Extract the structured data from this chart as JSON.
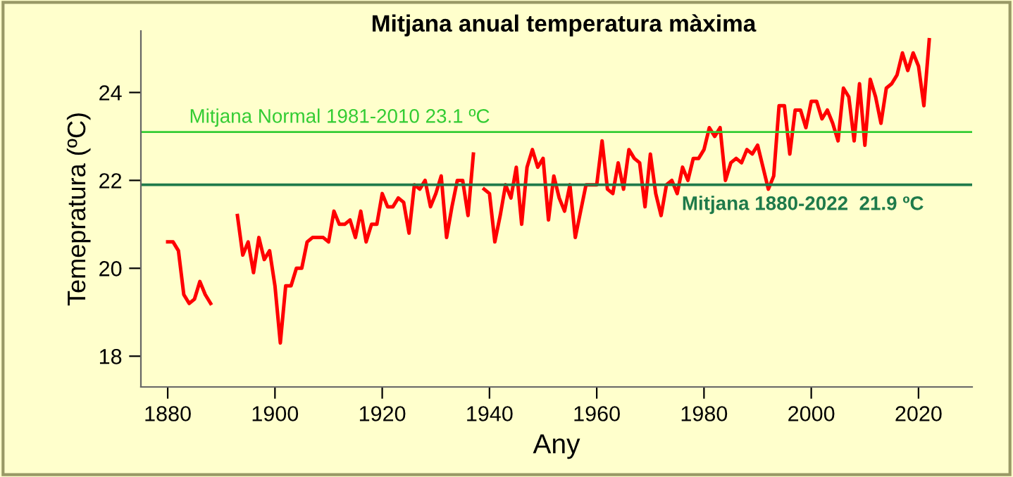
{
  "chart_data": {
    "type": "line",
    "title": "Mitjana anual temperatura màxima",
    "xlabel": "Any",
    "ylabel": "Temepratura (ºC)",
    "x": [
      1880,
      1881,
      1882,
      1883,
      1884,
      1885,
      1886,
      1887,
      1888,
      1889,
      1890,
      1891,
      1892,
      1893,
      1894,
      1895,
      1896,
      1897,
      1898,
      1899,
      1900,
      1901,
      1902,
      1903,
      1904,
      1905,
      1906,
      1907,
      1908,
      1909,
      1910,
      1911,
      1912,
      1913,
      1914,
      1915,
      1916,
      1917,
      1918,
      1919,
      1920,
      1921,
      1922,
      1923,
      1924,
      1925,
      1926,
      1927,
      1928,
      1929,
      1930,
      1931,
      1932,
      1933,
      1934,
      1935,
      1936,
      1937,
      1938,
      1939,
      1940,
      1941,
      1942,
      1943,
      1944,
      1945,
      1946,
      1947,
      1948,
      1949,
      1950,
      1951,
      1952,
      1953,
      1954,
      1955,
      1956,
      1957,
      1958,
      1959,
      1960,
      1961,
      1962,
      1963,
      1964,
      1965,
      1966,
      1967,
      1968,
      1969,
      1970,
      1971,
      1972,
      1973,
      1974,
      1975,
      1976,
      1977,
      1978,
      1979,
      1980,
      1981,
      1982,
      1983,
      1984,
      1985,
      1986,
      1987,
      1988,
      1989,
      1990,
      1991,
      1992,
      1993,
      1994,
      1995,
      1996,
      1997,
      1998,
      1999,
      2000,
      2001,
      2002,
      2003,
      2004,
      2005,
      2006,
      2007,
      2008,
      2009,
      2010,
      2011,
      2012,
      2013,
      2014,
      2015,
      2016,
      2017,
      2018,
      2019,
      2020,
      2021,
      2022
    ],
    "series": [
      {
        "color": "#ff0000",
        "values": [
          20.6,
          20.6,
          20.4,
          19.4,
          19.2,
          19.3,
          19.7,
          19.4,
          19.2,
          null,
          null,
          null,
          null,
          21.2,
          20.3,
          20.6,
          19.9,
          20.7,
          20.2,
          20.4,
          19.6,
          18.3,
          19.6,
          19.6,
          20.0,
          20.0,
          20.6,
          20.7,
          20.7,
          20.7,
          20.6,
          21.3,
          21.0,
          21.0,
          21.1,
          20.7,
          21.3,
          20.6,
          21.0,
          21.0,
          21.7,
          21.4,
          21.4,
          21.6,
          21.5,
          20.8,
          21.9,
          21.8,
          22.0,
          21.4,
          21.7,
          22.1,
          20.7,
          21.4,
          22.0,
          22.0,
          21.2,
          22.6,
          null,
          21.8,
          21.7,
          20.6,
          21.2,
          21.9,
          21.6,
          22.3,
          21.0,
          22.3,
          22.7,
          22.3,
          22.5,
          21.1,
          22.1,
          21.6,
          21.3,
          21.9,
          20.7,
          21.3,
          21.9,
          21.9,
          21.9,
          22.9,
          21.8,
          21.7,
          22.4,
          21.8,
          22.7,
          22.5,
          22.4,
          21.4,
          22.6,
          21.7,
          21.2,
          21.9,
          22.0,
          21.7,
          22.3,
          22.0,
          22.5,
          22.5,
          22.7,
          23.2,
          23.0,
          23.2,
          22.0,
          22.4,
          22.5,
          22.4,
          22.7,
          22.6,
          22.8,
          22.3,
          21.8,
          22.1,
          23.7,
          23.7,
          22.6,
          23.6,
          23.6,
          23.2,
          23.8,
          23.8,
          23.4,
          23.6,
          23.3,
          22.9,
          24.1,
          23.9,
          22.9,
          24.2,
          22.8,
          24.3,
          23.9,
          23.3,
          24.1,
          24.2,
          24.4,
          24.9,
          24.5,
          24.9,
          24.6,
          23.7,
          25.2
        ]
      }
    ],
    "xlim": [
      1875,
      2030
    ],
    "ylim": [
      17.3,
      25.4
    ],
    "xticks": [
      1880,
      1900,
      1920,
      1940,
      1960,
      1980,
      2000,
      2020
    ],
    "yticks": [
      18,
      20,
      22,
      24
    ],
    "ref_lines": [
      {
        "axis": "y",
        "value": 23.1,
        "label": "Mitjana Normal 1981-2010 23.1 ºC",
        "color": "#33cc33"
      },
      {
        "axis": "y",
        "value": 21.9,
        "label": "Mitjana 1880-2022  21.9 ºC",
        "color": "#1e7a4a"
      }
    ],
    "grid": false,
    "legend": false,
    "marker": "none",
    "line_style": "solid"
  }
}
